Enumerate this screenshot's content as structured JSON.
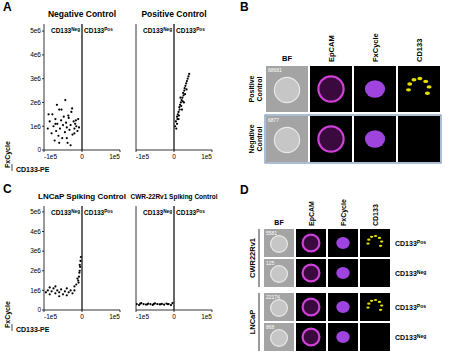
{
  "chart_data": [
    {
      "panel": "A",
      "type": "scatter",
      "title": "Negative Control",
      "x_label": "CD133-PE",
      "y_label": "FxCycle",
      "annotations": [
        {
          "text": "CD133",
          "sup": "Neg"
        },
        {
          "text": "CD133",
          "sup": "Pos"
        }
      ],
      "threshold": 0,
      "x": [
        -90000,
        -85000,
        -80000,
        -78000,
        -75000,
        -72000,
        -70000,
        -68000,
        -65000,
        -62000,
        -60000,
        -58000,
        -55000,
        -52000,
        -50000,
        -48000,
        -45000,
        -42000,
        -40000,
        -38000,
        -35000,
        -33000,
        -30000,
        -28000,
        -25000,
        -22000,
        -20000,
        -18000,
        -15000,
        -12000,
        -10000,
        -8000,
        -88000,
        -66000,
        -54000,
        -44000,
        -36000,
        -26000,
        -16000,
        -60000,
        -40000,
        -30000,
        -70000,
        -20000
      ],
      "values": [
        900000,
        1200000,
        700000,
        1500000,
        1000000,
        400000,
        1300000,
        800000,
        1100000,
        600000,
        1700000,
        900000,
        1250000,
        500000,
        1050000,
        1400000,
        750000,
        1150000,
        950000,
        300000,
        1350000,
        850000,
        1050000,
        1600000,
        650000,
        1200000,
        900000,
        1100000,
        1000000,
        800000,
        1300000,
        950000,
        1500000,
        1900000,
        1700000,
        2100000,
        1450000,
        1750000,
        1250000,
        300000,
        500000,
        200000,
        1100000,
        700000
      ],
      "color": "#000000",
      "marker": "dot",
      "xlim": [
        -100000,
        100000
      ],
      "ylim": [
        0,
        5300000
      ],
      "xticks": [
        {
          "value": -100000,
          "label": "-1e5"
        },
        0,
        {
          "value": 100000,
          "label": "1e5"
        }
      ],
      "yticks": [
        0,
        {
          "value": 1000000,
          "label": "1e6"
        },
        {
          "value": 2000000,
          "label": "2e6"
        },
        {
          "value": 3000000,
          "label": "3e6"
        },
        {
          "value": 4000000,
          "label": "4e6"
        },
        {
          "value": 5000000,
          "label": "5e6"
        }
      ]
    },
    {
      "type": "scatter",
      "title": "Positive Control",
      "annotations": [
        {
          "text": "CD133",
          "sup": "Neg"
        },
        {
          "text": "CD133",
          "sup": "Pos"
        }
      ],
      "threshold": 0,
      "x": [
        3000,
        5000,
        6000,
        8000,
        9000,
        10000,
        12000,
        13000,
        14000,
        15000,
        16000,
        18000,
        19000,
        20000,
        22000,
        23000,
        24000,
        25000,
        27000,
        28000,
        30000,
        32000,
        34000,
        36000,
        38000,
        40000,
        12000,
        17000,
        21000,
        26000,
        8000,
        29000,
        33000
      ],
      "values": [
        1000000,
        1200000,
        900000,
        1400000,
        1300000,
        1500000,
        1600000,
        1450000,
        1800000,
        1700000,
        1900000,
        2000000,
        1850000,
        2100000,
        2200000,
        2050000,
        2400000,
        2300000,
        2500000,
        2600000,
        2700000,
        2800000,
        2900000,
        3000000,
        3100000,
        3200000,
        1300000,
        2200000,
        1700000,
        2000000,
        1100000,
        2350000,
        2550000
      ],
      "color": "#000000",
      "marker": "dot",
      "tick_labels": "x",
      "xlim": [
        -100000,
        100000
      ],
      "ylim": [
        0,
        5300000
      ],
      "xticks": [
        {
          "value": -100000,
          "label": "-1e5"
        },
        0,
        {
          "value": 100000,
          "label": "1e5"
        }
      ]
    },
    {
      "panel": "C",
      "type": "scatter",
      "title": "LNCaP Spiking Control",
      "x_label": "CD133-PE",
      "y_label": "FxCycle",
      "annotations": [
        {
          "text": "CD133",
          "sup": "Neg"
        },
        {
          "text": "CD133",
          "sup": "Pos"
        }
      ],
      "threshold": 0,
      "x": [
        -95000,
        -90000,
        -85000,
        -80000,
        -75000,
        -70000,
        -65000,
        -60000,
        -55000,
        -50000,
        -45000,
        -40000,
        -35000,
        -30000,
        -25000,
        -20000,
        -15000,
        -10000,
        -8000,
        -6000,
        -5000,
        -4000,
        -12000,
        -7000,
        -3000,
        -9000,
        -6000,
        -85000,
        -60000,
        -40000,
        -20000,
        -70000
      ],
      "values": [
        900000,
        1000000,
        800000,
        950000,
        1100000,
        850000,
        1000000,
        900000,
        1050000,
        800000,
        950000,
        1100000,
        900000,
        1000000,
        850000,
        1200000,
        1300000,
        1500000,
        1700000,
        2000000,
        2200000,
        2500000,
        1600000,
        1900000,
        2700000,
        1400000,
        2300000,
        1150000,
        700000,
        750000,
        1000000,
        1200000
      ],
      "color": "#000000",
      "marker": "dot",
      "xlim": [
        -100000,
        100000
      ],
      "ylim": [
        0,
        5300000
      ],
      "xticks": [
        {
          "value": -100000,
          "label": "-1e5"
        },
        0,
        {
          "value": 100000,
          "label": "1e5"
        }
      ],
      "yticks": [
        0,
        {
          "value": 1000000,
          "label": "1e6"
        },
        {
          "value": 2000000,
          "label": "2e6"
        },
        {
          "value": 3000000,
          "label": "3e6"
        },
        {
          "value": 4000000,
          "label": "4e6"
        },
        {
          "value": 5000000,
          "label": "5e6"
        }
      ]
    },
    {
      "type": "scatter",
      "title": "CWR-22Rv1 Spiking Control",
      "annotations": [
        {
          "text": "CD133",
          "sup": "Neg"
        },
        {
          "text": "CD133",
          "sup": "Pos"
        }
      ],
      "threshold": 0,
      "x": [
        -98000,
        -92000,
        -86000,
        -80000,
        -74000,
        -68000,
        -62000,
        -56000,
        -50000,
        -44000,
        -38000,
        -32000,
        -26000,
        -20000,
        -14000,
        -8000,
        -4000,
        -89000,
        -71000,
        -53000,
        -35000,
        -17000
      ],
      "values": [
        300000,
        250000,
        350000,
        300000,
        280000,
        320000,
        300000,
        260000,
        340000,
        300000,
        290000,
        310000,
        270000,
        330000,
        300000,
        250000,
        350000,
        320000,
        280000,
        310000,
        290000,
        300000
      ],
      "color": "#000000",
      "marker": "dot",
      "tick_labels": "x",
      "xlim": [
        -100000,
        100000
      ],
      "ylim": [
        0,
        5300000
      ],
      "xticks": [
        {
          "value": -100000,
          "label": "-1e5"
        },
        0,
        {
          "value": 100000,
          "label": "1e5"
        }
      ]
    }
  ],
  "image_panels": [
    {
      "panel": "B",
      "channels": [
        "BF",
        "EpCAM",
        "FxCycle",
        "CD133"
      ],
      "rows": [
        {
          "label": "Positive Control",
          "cell_id": "68681",
          "cd133_signal": true
        },
        {
          "label": "Negative Control",
          "cell_id": "6877",
          "cd133_signal": false
        }
      ]
    },
    {
      "panel": "D",
      "channels": [
        "BF",
        "EpCAM",
        "FxCycle",
        "CD133"
      ],
      "groups": [
        {
          "label": "CWR22Rv1",
          "rows": [
            {
              "cell_id": "5581",
              "status": "CD133",
              "status_sup": "Pos",
              "cd133_signal": true
            },
            {
              "cell_id": "125",
              "status": "CD133",
              "status_sup": "Neg",
              "cd133_signal": false
            }
          ]
        },
        {
          "label": "LNCaP",
          "rows": [
            {
              "cell_id": "22174",
              "status": "CD133",
              "status_sup": "Pos",
              "cd133_signal": true
            },
            {
              "cell_id": "868",
              "status": "CD133",
              "status_sup": "Neg",
              "cd133_signal": false
            }
          ]
        }
      ]
    }
  ]
}
